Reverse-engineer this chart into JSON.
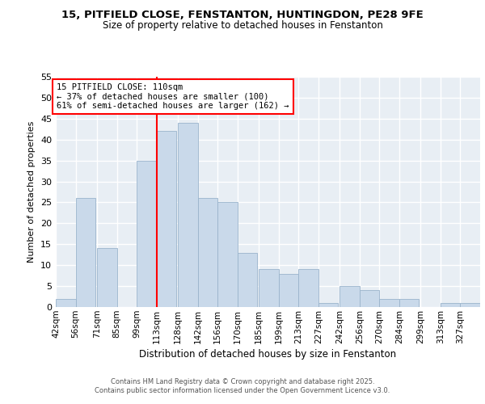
{
  "title_line1": "15, PITFIELD CLOSE, FENSTANTON, HUNTINGDON, PE28 9FE",
  "title_line2": "Size of property relative to detached houses in Fenstanton",
  "xlabel": "Distribution of detached houses by size in Fenstanton",
  "ylabel": "Number of detached properties",
  "bins": [
    42,
    56,
    71,
    85,
    99,
    113,
    128,
    142,
    156,
    170,
    185,
    199,
    213,
    227,
    242,
    256,
    270,
    284,
    299,
    313,
    327
  ],
  "bin_width": 14,
  "counts": [
    2,
    26,
    14,
    0,
    35,
    42,
    44,
    26,
    25,
    13,
    9,
    8,
    9,
    1,
    5,
    4,
    2,
    2,
    0,
    1,
    1
  ],
  "bar_color": "#c9d9ea",
  "bar_edge_color": "#9ab4cc",
  "vline_x": 113,
  "vline_color": "red",
  "annotation_text": "15 PITFIELD CLOSE: 110sqm\n← 37% of detached houses are smaller (100)\n61% of semi-detached houses are larger (162) →",
  "annotation_box_color": "white",
  "annotation_box_edge": "red",
  "ylim": [
    0,
    55
  ],
  "yticks": [
    0,
    5,
    10,
    15,
    20,
    25,
    30,
    35,
    40,
    45,
    50,
    55
  ],
  "background_color": "#e8eef4",
  "footer_line1": "Contains HM Land Registry data © Crown copyright and database right 2025.",
  "footer_line2": "Contains public sector information licensed under the Open Government Licence v3.0."
}
